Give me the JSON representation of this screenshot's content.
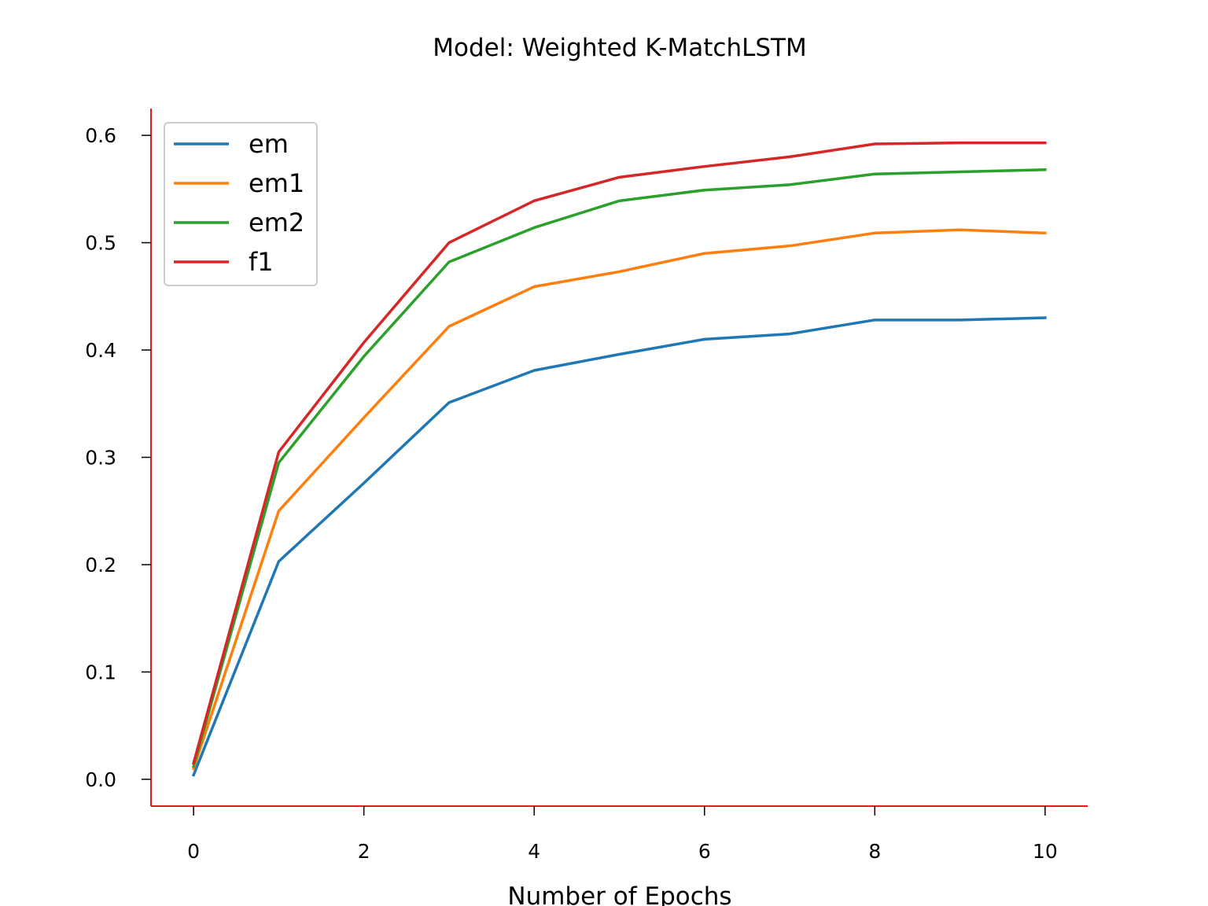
{
  "chart_data": {
    "type": "line",
    "title": "Model: Weighted K-MatchLSTM",
    "xlabel": "Number of Epochs",
    "ylabel": "",
    "xlim": [
      -0.5,
      10.5
    ],
    "ylim": [
      -0.025,
      0.625
    ],
    "xticks": [
      0,
      2,
      4,
      6,
      8,
      10
    ],
    "yticks": [
      0.0,
      0.1,
      0.2,
      0.3,
      0.4,
      0.5,
      0.6
    ],
    "xtick_labels": [
      "0",
      "2",
      "4",
      "6",
      "8",
      "10"
    ],
    "ytick_labels": [
      "0.0",
      "0.1",
      "0.2",
      "0.3",
      "0.4",
      "0.5",
      "0.6"
    ],
    "grid": false,
    "legend_position": "upper-left",
    "axis_color": "#e41a1c",
    "x": [
      0,
      1,
      2,
      3,
      4,
      5,
      6,
      7,
      8,
      9,
      10
    ],
    "series": [
      {
        "name": "em",
        "color": "#1f77b4",
        "values": [
          0.004,
          0.203,
          0.276,
          0.351,
          0.381,
          0.396,
          0.41,
          0.415,
          0.428,
          0.428,
          0.43
        ]
      },
      {
        "name": "em1",
        "color": "#ff7f0e",
        "values": [
          0.01,
          0.25,
          0.337,
          0.422,
          0.459,
          0.473,
          0.49,
          0.497,
          0.509,
          0.512,
          0.509
        ]
      },
      {
        "name": "em2",
        "color": "#2ca02c",
        "values": [
          0.012,
          0.295,
          0.394,
          0.482,
          0.514,
          0.539,
          0.549,
          0.554,
          0.564,
          0.566,
          0.568
        ]
      },
      {
        "name": "f1",
        "color": "#d62728",
        "values": [
          0.015,
          0.305,
          0.407,
          0.5,
          0.539,
          0.561,
          0.571,
          0.58,
          0.592,
          0.593,
          0.593
        ]
      }
    ]
  }
}
